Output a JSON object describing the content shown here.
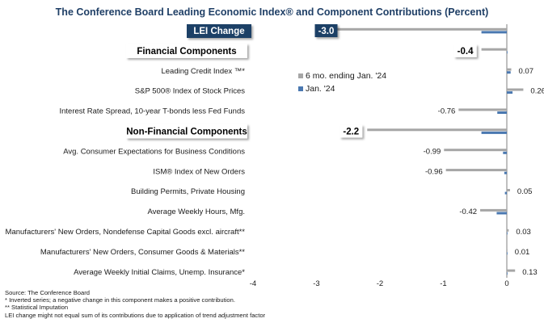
{
  "title": "The Conference Board Leading Economic Index® and Component Contributions (Percent)",
  "colors": {
    "six_month": "#a6a6a6",
    "jan": "#4a78b0",
    "lei_label_bg": "#1f3f66"
  },
  "legend": [
    {
      "label": "6 mo. ending Jan. '24",
      "color": "#a6a6a6"
    },
    {
      "label": "Jan. '24",
      "color": "#4a78b0"
    }
  ],
  "chart_data": {
    "type": "bar",
    "orientation": "horizontal",
    "xlim": [
      -4,
      0
    ],
    "x_ticks": [
      -4,
      -3,
      -2,
      -1,
      0
    ],
    "x_tick_labels": [
      "-4",
      "-3",
      "-2",
      "-1",
      "0"
    ],
    "series": [
      {
        "name": "6 mo. ending Jan. '24"
      },
      {
        "name": "Jan. '24"
      }
    ],
    "rows": [
      {
        "label": "LEI Change",
        "kind": "lei",
        "six_month": -3.0,
        "jan": -0.4,
        "value_label": "-3.0"
      },
      {
        "label": "Financial Components",
        "kind": "header",
        "six_month": -0.4,
        "jan": 0.0,
        "value_label": "-0.4"
      },
      {
        "label": "Leading Credit Index ™*",
        "kind": "item",
        "six_month": 0.07,
        "jan": 0.06,
        "value_label": "0.07"
      },
      {
        "label": "S&P 500® Index of Stock Prices",
        "kind": "item",
        "six_month": 0.26,
        "jan": 0.09,
        "value_label": "0.26"
      },
      {
        "label": "Interest Rate Spread, 10-year T-bonds less Fed Funds",
        "kind": "item",
        "six_month": -0.76,
        "jan": -0.15,
        "value_label": "-0.76"
      },
      {
        "label": "Non-Financial Components",
        "kind": "header",
        "six_month": -2.2,
        "jan": -0.4,
        "value_label": "-2.2"
      },
      {
        "label": "Avg. Consumer Expectations for Business Conditions",
        "kind": "item",
        "six_month": -0.99,
        "jan": -0.06,
        "value_label": "-0.99"
      },
      {
        "label": "ISM® Index of New Orders",
        "kind": "item",
        "six_month": -0.96,
        "jan": -0.04,
        "value_label": "-0.96"
      },
      {
        "label": "Building Permits, Private Housing",
        "kind": "item",
        "six_month": 0.05,
        "jan": -0.03,
        "value_label": "0.05"
      },
      {
        "label": "Average Weekly Hours, Mfg.",
        "kind": "item",
        "six_month": -0.42,
        "jan": -0.16,
        "value_label": "-0.42"
      },
      {
        "label": "Manufacturers' New Orders, Nondefense Capital Goods excl. aircraft**",
        "kind": "item",
        "six_month": 0.03,
        "jan": 0.005,
        "value_label": "0.03"
      },
      {
        "label": "Manufacturers' New Orders, Consumer Goods & Materials**",
        "kind": "item",
        "six_month": 0.01,
        "jan": 0.0,
        "value_label": "0.01"
      },
      {
        "label": "Average Weekly Initial Claims, Unemp. Insurance*",
        "kind": "item",
        "six_month": 0.13,
        "jan": 0.0,
        "value_label": "0.13"
      }
    ]
  },
  "notes": [
    "Source: The Conference Board",
    "*  Inverted series; a negative change in this component makes a positive contribution.",
    "**  Statistical Imputation",
    "LEI change might not equal sum of its contributions due to application of trend adjustment factor"
  ]
}
